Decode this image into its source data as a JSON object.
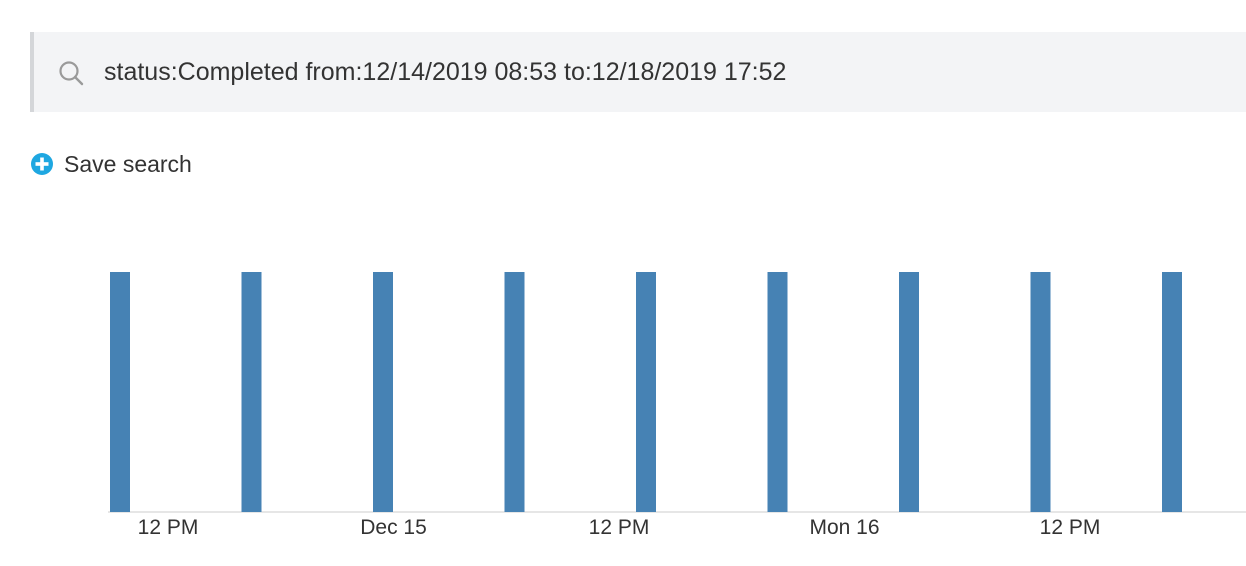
{
  "search": {
    "query": "status:Completed from:12/14/2019 08:53 to:12/18/2019 17:52",
    "icon": "search-icon"
  },
  "save_search": {
    "label": "Save search",
    "icon": "plus-circle-icon",
    "icon_color": "#1ea7e1"
  },
  "chart_data": {
    "type": "bar",
    "title": "",
    "xlabel": "",
    "ylabel": "",
    "bar_color": "#4682b4",
    "x_ticks": [
      "12 PM",
      "Dec 15",
      "12 PM",
      "Mon 16",
      "12 PM"
    ],
    "ylim": [
      0,
      1
    ],
    "values": [
      1,
      1,
      1,
      1,
      1,
      1,
      1,
      1,
      1
    ]
  }
}
